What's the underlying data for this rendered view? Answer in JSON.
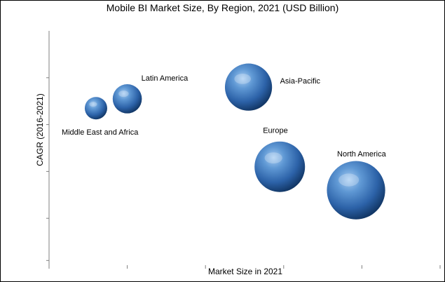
{
  "chart_data": {
    "type": "scatter",
    "title": "Mobile BI Market Size, By Region, 2021 (USD Billion)",
    "xlabel": "Market Size in 2021",
    "ylabel": "CAGR (2016-2021)",
    "xlim": [
      0,
      10
    ],
    "ylim": [
      0,
      10
    ],
    "grid": false,
    "series": [
      {
        "values": [
          {
            "label": "Middle East and Africa",
            "x": 1.2,
            "y": 6.7,
            "size": 1.0
          },
          {
            "label": "Latin America",
            "x": 2.0,
            "y": 7.1,
            "size": 1.3
          },
          {
            "label": "Asia-Pacific",
            "x": 5.1,
            "y": 7.6,
            "size": 2.1
          },
          {
            "label": "Europe",
            "x": 5.9,
            "y": 4.2,
            "size": 2.25
          },
          {
            "label": "North America",
            "x": 7.85,
            "y": 3.2,
            "size": 2.6
          }
        ]
      }
    ]
  }
}
